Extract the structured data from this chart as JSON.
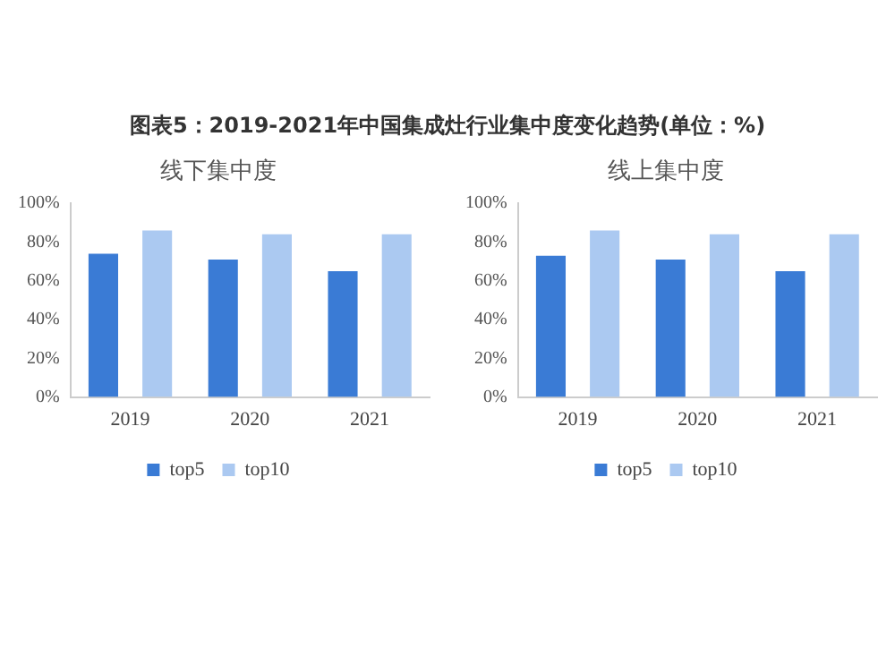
{
  "chart_data": [
    {
      "type": "bar",
      "title": "图表5：2019-2021年中国集成灶行业集中度变化趋势(单位：%)",
      "subtitle": "线下集中度",
      "categories": [
        "2019",
        "2020",
        "2021"
      ],
      "series": [
        {
          "name": "top5",
          "color": "#3a7bd5",
          "values": [
            74,
            71,
            65
          ]
        },
        {
          "name": "top10",
          "color": "#abc9f1",
          "values": [
            86,
            84,
            84
          ]
        }
      ],
      "ylim": [
        0,
        100
      ],
      "yticks": [
        {
          "value": 0,
          "label": "0%"
        },
        {
          "value": 20,
          "label": "20%"
        },
        {
          "value": 40,
          "label": "40%"
        },
        {
          "value": 60,
          "label": "60%"
        },
        {
          "value": 80,
          "label": "80%"
        },
        {
          "value": 100,
          "label": "100%"
        }
      ],
      "grid": false,
      "legend": "bottom"
    },
    {
      "type": "bar",
      "title": "线上集中度",
      "categories": [
        "2019",
        "2020",
        "2021"
      ],
      "series": [
        {
          "name": "top5",
          "color": "#3a7bd5",
          "values": [
            73,
            71,
            65
          ]
        },
        {
          "name": "top10",
          "color": "#abc9f1",
          "values": [
            86,
            84,
            84
          ]
        }
      ],
      "ylim": [
        0,
        100
      ],
      "yticks": [
        {
          "value": 0,
          "label": "0%"
        },
        {
          "value": 20,
          "label": "20%"
        },
        {
          "value": 40,
          "label": "40%"
        },
        {
          "value": 60,
          "label": "60%"
        },
        {
          "value": 80,
          "label": "80%"
        },
        {
          "value": 100,
          "label": "100%"
        }
      ],
      "grid": false,
      "legend": "bottom"
    }
  ]
}
